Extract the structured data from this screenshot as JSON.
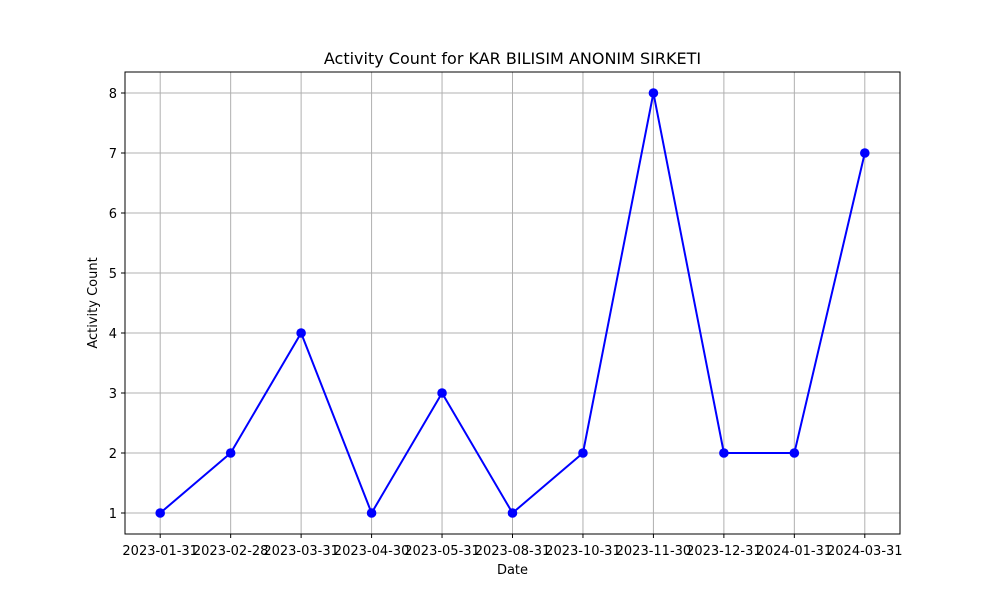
{
  "chart_data": {
    "type": "line",
    "title": "Activity Count for KAR BILISIM ANONIM SIRKETI",
    "xlabel": "Date",
    "ylabel": "Activity Count",
    "categories": [
      "2023-01-31",
      "2023-02-28",
      "2023-03-31",
      "2023-04-30",
      "2023-05-31",
      "2023-08-31",
      "2023-10-31",
      "2023-11-30",
      "2023-12-31",
      "2024-01-31",
      "2024-03-31"
    ],
    "series": [
      {
        "values": [
          1,
          2,
          4,
          1,
          3,
          1,
          2,
          8,
          2,
          2,
          7
        ],
        "color": "#0000ff",
        "marker": "circle"
      }
    ],
    "yticks": [
      1,
      2,
      3,
      4,
      5,
      6,
      7,
      8
    ],
    "ylim": [
      0.65,
      8.35
    ],
    "grid": true,
    "legend": "none"
  }
}
